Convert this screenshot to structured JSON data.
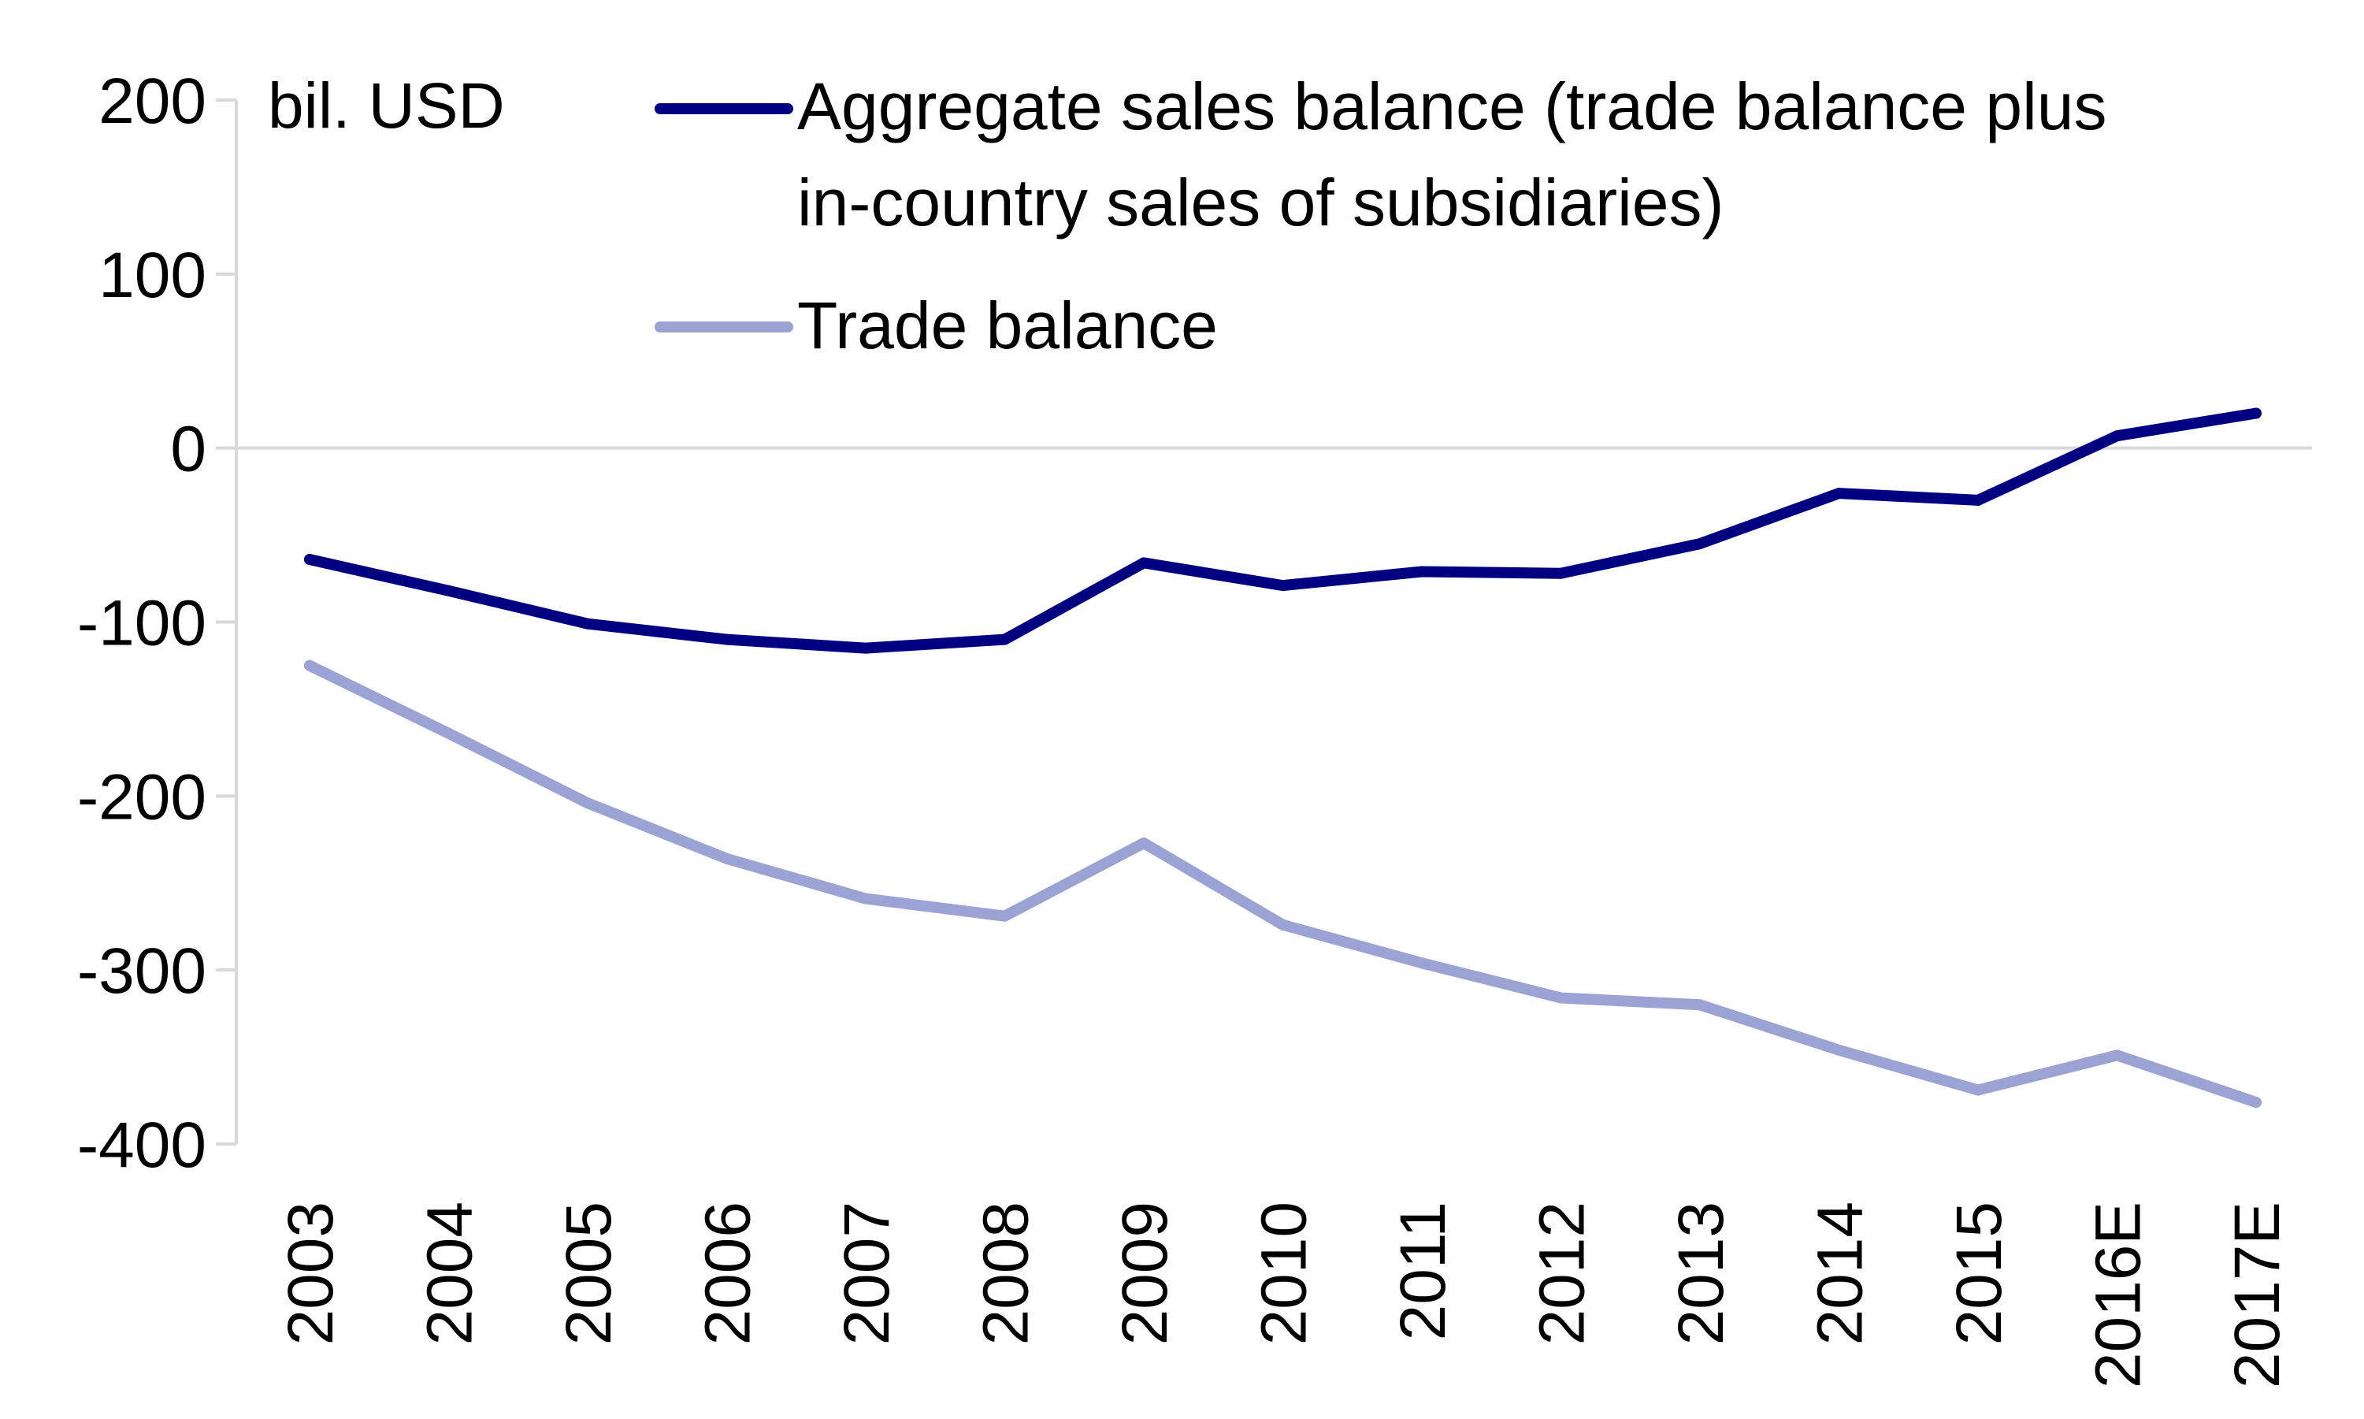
{
  "chart_data": {
    "type": "line",
    "unit_label": "bil. USD",
    "categories": [
      "2003",
      "2004",
      "2005",
      "2006",
      "2007",
      "2008",
      "2009",
      "2010",
      "2011",
      "2012",
      "2013",
      "2014",
      "2015",
      "2016E",
      "2017E"
    ],
    "ylim": [
      -400,
      200
    ],
    "yticks": [
      200,
      100,
      0,
      -100,
      -200,
      -300,
      -400
    ],
    "ytick_labels": [
      "200",
      "100",
      "0",
      "-100",
      "-200",
      "-300",
      "-400"
    ],
    "grid": false,
    "legend_position": "top-right",
    "series": [
      {
        "name": "Aggregate sales balance (trade balance plus in-country sales of subsidiaries)",
        "legend_lines": [
          "Aggregate sales balance (trade balance plus",
          "in-country sales of subsidiaries)"
        ],
        "color": "#000080",
        "values": [
          -64,
          -82,
          -101,
          -110,
          -115,
          -110,
          -66,
          -79,
          -71,
          -72,
          -55,
          -26,
          -30,
          7,
          20
        ]
      },
      {
        "name": "Trade balance",
        "legend_lines": [
          "Trade balance"
        ],
        "color": "#9ba3d4",
        "values": [
          -125,
          -164,
          -204,
          -236,
          -259,
          -269,
          -227,
          -274,
          -296,
          -316,
          -320,
          -346,
          -369,
          -349,
          -376
        ]
      }
    ]
  }
}
